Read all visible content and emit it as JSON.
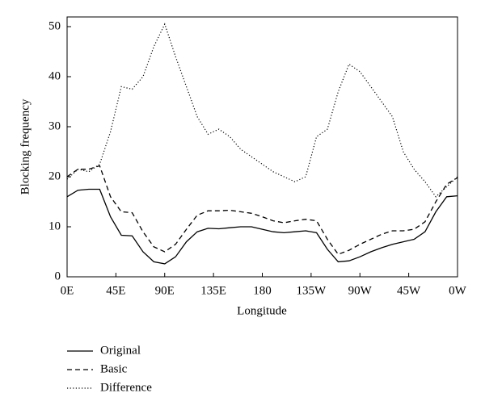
{
  "chart_data": {
    "type": "line",
    "y_label": "Blocking frequency",
    "x_label": "Longitude",
    "x": [
      0,
      10,
      20,
      30,
      40,
      50,
      60,
      70,
      80,
      90,
      100,
      110,
      120,
      130,
      140,
      150,
      160,
      170,
      180,
      190,
      200,
      210,
      220,
      230,
      240,
      250,
      260,
      270,
      280,
      290,
      300,
      310,
      320,
      330,
      340,
      350,
      360
    ],
    "series": [
      {
        "name": "Original",
        "color": "#000000",
        "style": "solid",
        "values": [
          16,
          17.3,
          17.5,
          17.5,
          12,
          8.3,
          8.2,
          5,
          3,
          2.6,
          4,
          7,
          9,
          9.7,
          9.6,
          9.8,
          10,
          10,
          9.5,
          9,
          8.8,
          9,
          9.2,
          8.8,
          5.5,
          3,
          3.2,
          4,
          5,
          5.8,
          6.5,
          7,
          7.5,
          9,
          13,
          16,
          16.2
        ]
      },
      {
        "name": "Basic",
        "color": "#000000",
        "style": "dashed",
        "values": [
          20,
          21.5,
          21.5,
          22.2,
          16,
          13,
          12.8,
          9,
          6,
          5,
          6.5,
          9.5,
          12.3,
          13.2,
          13.2,
          13.3,
          13,
          12.7,
          12,
          11.2,
          10.8,
          11.2,
          11.5,
          11.2,
          7.5,
          4.5,
          5.3,
          6.5,
          7.5,
          8.5,
          9.2,
          9.2,
          9.5,
          11,
          15,
          18.5,
          19.8
        ]
      },
      {
        "name": "Difference",
        "color": "#000000",
        "style": "dotted",
        "values": [
          19.5,
          21.5,
          21,
          22.5,
          29,
          38,
          37.5,
          40,
          46,
          50.5,
          44,
          38,
          32,
          28.5,
          29.5,
          28,
          25.5,
          24,
          22.5,
          21,
          20,
          19,
          20,
          28,
          29.5,
          37,
          42.5,
          41,
          38,
          35,
          32,
          25,
          21.5,
          19,
          16,
          18,
          20
        ]
      }
    ],
    "xlim": [
      0,
      360
    ],
    "xticks": [
      {
        "value": 0,
        "label": "0E"
      },
      {
        "value": 45,
        "label": "45E"
      },
      {
        "value": 90,
        "label": "90E"
      },
      {
        "value": 135,
        "label": "135E"
      },
      180,
      {
        "value": 225,
        "label": "135W"
      },
      {
        "value": 270,
        "label": "90W"
      },
      {
        "value": 315,
        "label": "45W"
      },
      {
        "value": 360,
        "label": "0W"
      }
    ],
    "ylim": [
      0,
      50
    ],
    "yticks": [
      0,
      10,
      20,
      30,
      40,
      50
    ],
    "grid": false,
    "legend": "bottom-left"
  }
}
